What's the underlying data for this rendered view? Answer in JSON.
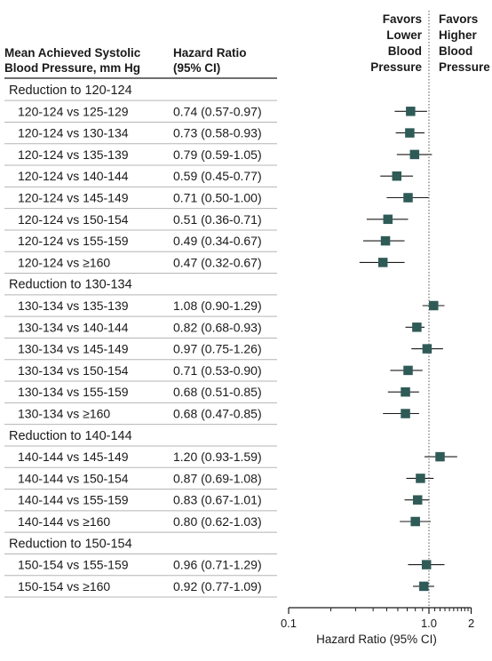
{
  "chart_data": {
    "type": "forest",
    "column_headers": {
      "comparison": [
        "Mean Achieved Systolic",
        "Blood Pressure, mm Hg"
      ],
      "hazard_ratio": [
        "Hazard Ratio",
        "(95% CI)"
      ]
    },
    "favors_left": [
      "Favors",
      "Lower",
      "Blood",
      "Pressure"
    ],
    "favors_right": [
      "Favors",
      "Higher",
      "Blood",
      "Pressure"
    ],
    "x_axis": {
      "label": "Hazard Ratio (95% CI)",
      "scale": "log",
      "range": [
        0.1,
        2
      ],
      "ticks": [
        {
          "value": 0.1,
          "label": "0.1"
        },
        {
          "value": 1,
          "label": "1.0"
        },
        {
          "value": 2,
          "label": "2"
        }
      ],
      "reference_line": 1
    },
    "groups": [
      {
        "label": "Reduction to 120-124",
        "rows": [
          {
            "label": "120-124 vs 125-129",
            "hr_text": "0.74 (0.57-0.97)",
            "hr": 0.74,
            "lo": 0.57,
            "hi": 0.97
          },
          {
            "label": "120-124 vs 130-134",
            "hr_text": "0.73 (0.58-0.93)",
            "hr": 0.73,
            "lo": 0.58,
            "hi": 0.93
          },
          {
            "label": "120-124 vs 135-139",
            "hr_text": "0.79 (0.59-1.05)",
            "hr": 0.79,
            "lo": 0.59,
            "hi": 1.05
          },
          {
            "label": "120-124 vs 140-144",
            "hr_text": "0.59 (0.45-0.77)",
            "hr": 0.59,
            "lo": 0.45,
            "hi": 0.77
          },
          {
            "label": "120-124 vs 145-149",
            "hr_text": "0.71 (0.50-1.00)",
            "hr": 0.71,
            "lo": 0.5,
            "hi": 1.0
          },
          {
            "label": "120-124 vs 150-154",
            "hr_text": "0.51 (0.36-0.71)",
            "hr": 0.51,
            "lo": 0.36,
            "hi": 0.71
          },
          {
            "label": "120-124 vs 155-159",
            "hr_text": "0.49 (0.34-0.67)",
            "hr": 0.49,
            "lo": 0.34,
            "hi": 0.67
          },
          {
            "label": "120-124 vs ≥160",
            "hr_text": "0.47 (0.32-0.67)",
            "hr": 0.47,
            "lo": 0.32,
            "hi": 0.67
          }
        ]
      },
      {
        "label": "Reduction to 130-134",
        "rows": [
          {
            "label": "130-134 vs 135-139",
            "hr_text": "1.08 (0.90-1.29)",
            "hr": 1.08,
            "lo": 0.9,
            "hi": 1.29
          },
          {
            "label": "130-134 vs 140-144",
            "hr_text": "0.82 (0.68-0.93)",
            "hr": 0.82,
            "lo": 0.68,
            "hi": 0.93
          },
          {
            "label": "130-134 vs 145-149",
            "hr_text": "0.97 (0.75-1.26)",
            "hr": 0.97,
            "lo": 0.75,
            "hi": 1.26
          },
          {
            "label": "130-134 vs 150-154",
            "hr_text": "0.71 (0.53-0.90)",
            "hr": 0.71,
            "lo": 0.53,
            "hi": 0.9
          },
          {
            "label": "130-134 vs 155-159",
            "hr_text": "0.68 (0.51-0.85)",
            "hr": 0.68,
            "lo": 0.51,
            "hi": 0.85
          },
          {
            "label": "130-134 vs ≥160",
            "hr_text": "0.68 (0.47-0.85)",
            "hr": 0.68,
            "lo": 0.47,
            "hi": 0.85
          }
        ]
      },
      {
        "label": "Reduction to 140-144",
        "rows": [
          {
            "label": "140-144 vs 145-149",
            "hr_text": "1.20 (0.93-1.59)",
            "hr": 1.2,
            "lo": 0.93,
            "hi": 1.59
          },
          {
            "label": "140-144 vs 150-154",
            "hr_text": "0.87 (0.69-1.08)",
            "hr": 0.87,
            "lo": 0.69,
            "hi": 1.08
          },
          {
            "label": "140-144 vs 155-159",
            "hr_text": "0.83 (0.67-1.01)",
            "hr": 0.83,
            "lo": 0.67,
            "hi": 1.01
          },
          {
            "label": "140-144 vs ≥160",
            "hr_text": "0.80 (0.62-1.03)",
            "hr": 0.8,
            "lo": 0.62,
            "hi": 1.03
          }
        ]
      },
      {
        "label": "Reduction to 150-154",
        "rows": [
          {
            "label": "150-154 vs 155-159",
            "hr_text": "0.96 (0.71-1.29)",
            "hr": 0.96,
            "lo": 0.71,
            "hi": 1.29
          },
          {
            "label": "150-154 vs ≥160",
            "hr_text": "0.92 (0.77-1.09)",
            "hr": 0.92,
            "lo": 0.77,
            "hi": 1.09
          }
        ]
      }
    ],
    "colors": {
      "marker": "#2f5b57",
      "ci_line": "#1a1a1a",
      "row_divider": "#b5b5b5",
      "header_rule": "#1a1a1a"
    }
  }
}
